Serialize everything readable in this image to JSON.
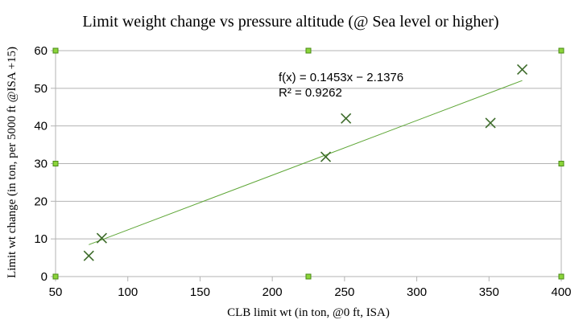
{
  "chart_data": {
    "type": "scatter",
    "title": "Limit weight change vs pressure altitude (@ Sea level or higher)",
    "xlabel": "CLB limit wt (in ton, @0 ft, ISA)",
    "ylabel": "Limit wt change (in ton, per 5000 ft @ISA +15)",
    "xlim": [
      50,
      400
    ],
    "ylim": [
      0,
      60
    ],
    "xticks": [
      "50",
      "100",
      "150",
      "200",
      "250",
      "300",
      "350",
      "400"
    ],
    "yticks": [
      "0",
      "10",
      "20",
      "30",
      "40",
      "50",
      "60"
    ],
    "grid": "horizontal",
    "legend": "none",
    "marker": "x",
    "marker_color": "#3d6b2a",
    "trendline_color": "#5ea636",
    "series": [
      {
        "points": [
          {
            "x": 73,
            "y": 5.5
          },
          {
            "x": 82,
            "y": 10.2
          },
          {
            "x": 237,
            "y": 31.8
          },
          {
            "x": 251,
            "y": 42
          },
          {
            "x": 351,
            "y": 40.8
          },
          {
            "x": 373,
            "y": 55
          }
        ]
      }
    ],
    "trendline": {
      "type": "linear",
      "slope": 0.1453,
      "intercept": -2.1376,
      "x_range": [
        73,
        373
      ],
      "equation_label": "f(x) = 0.1453x − 2.1376",
      "r2_label": "R² = 0.9262"
    }
  }
}
